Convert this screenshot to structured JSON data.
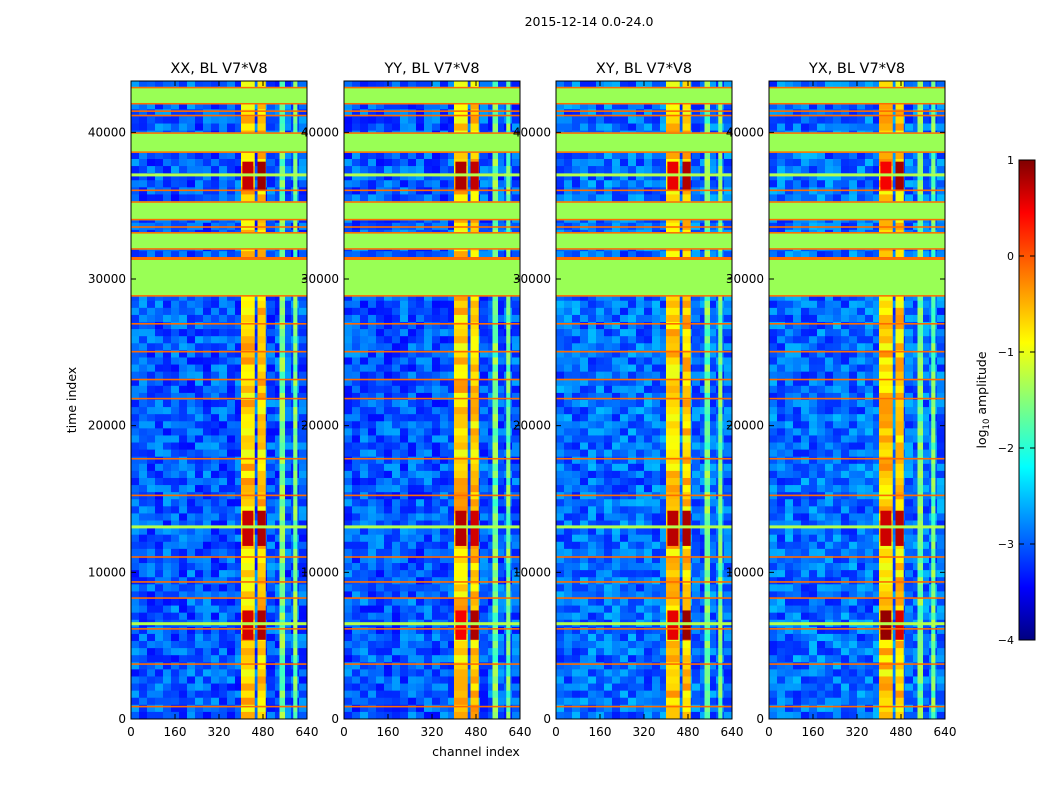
{
  "figure": {
    "suptitle": "2015-12-14 0.0-24.0",
    "ylabel": "time index",
    "xlabel": "channel index"
  },
  "chart_data": {
    "type": "heatmap",
    "panels": [
      {
        "title": "XX, BL V7*V8",
        "pol": "XX"
      },
      {
        "title": "YY, BL V7*V8",
        "pol": "YY"
      },
      {
        "title": "XY, BL V7*V8",
        "pol": "XY"
      },
      {
        "title": "YX, BL V7*V8",
        "pol": "YX"
      }
    ],
    "x_ticks": [
      0,
      160,
      320,
      480,
      640
    ],
    "x_tick_labels": [
      "0",
      "160",
      "320",
      "480",
      "640"
    ],
    "xlim": [
      0,
      640
    ],
    "y_ticks": [
      0,
      10000,
      20000,
      30000,
      40000
    ],
    "y_tick_labels": [
      "0",
      "10000",
      "20000",
      "30000",
      "40000"
    ],
    "ylim": [
      0,
      43500
    ],
    "colorbar": {
      "label": "log10 amplitude",
      "label_base": "log",
      "label_sub": "10",
      "label_rest": " amplitude",
      "range": [
        -4,
        1
      ],
      "ticks": [
        -4,
        -3,
        -2,
        -1,
        0,
        1
      ],
      "tick_labels": [
        "−4",
        "−3",
        "−2",
        "−1",
        "0",
        "1"
      ],
      "colormap": "jet"
    },
    "flagged_time_ranges": [
      [
        28800,
        31400
      ],
      [
        32000,
        33200
      ],
      [
        34000,
        35300
      ],
      [
        38600,
        40000
      ],
      [
        41900,
        43100
      ]
    ],
    "flagged_rows": [
      900,
      3800,
      6200,
      8300,
      9400,
      11100,
      15300,
      17800,
      21900,
      23200,
      25100,
      27000,
      31500,
      33600,
      36100,
      41200,
      41500
    ],
    "bright_channel_bands": [
      [
        400,
        450
      ],
      [
        460,
        490
      ],
      [
        540,
        560
      ],
      [
        590,
        605
      ]
    ],
    "rfi_blocks": [
      [
        5400,
        7400
      ],
      [
        11800,
        14200
      ],
      [
        36000,
        38000
      ]
    ],
    "flag_color": "#99ff55",
    "flag_line_color": "#ff6a00"
  }
}
